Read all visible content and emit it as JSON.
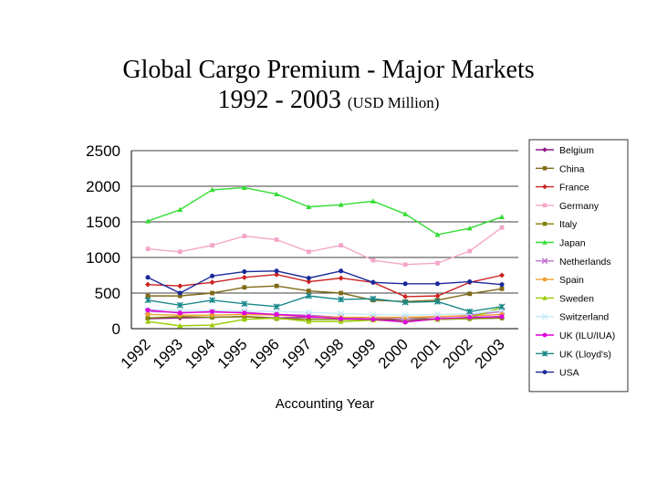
{
  "header": {
    "title_line1": "Global Cargo Premium - Major Markets",
    "title_line2": "1992 - 2003",
    "title_unit": "(USD Million)"
  },
  "chart_data": {
    "type": "line",
    "x": [
      "1992",
      "1993",
      "1994",
      "1995",
      "1996",
      "1997",
      "1998",
      "1999",
      "2000",
      "2001",
      "2002",
      "2003"
    ],
    "xlabel": "Accounting Year",
    "ylabel": "",
    "ylim": [
      0,
      2500
    ],
    "yticks": [
      0,
      500,
      1000,
      1500,
      2000,
      2500
    ],
    "grid": true,
    "legend": "right",
    "series": [
      {
        "name": "Belgium",
        "color": "#8B1A8B",
        "marker": "diamond",
        "values": [
          140,
          150,
          160,
          170,
          150,
          160,
          150,
          130,
          120,
          130,
          140,
          150
        ]
      },
      {
        "name": "China",
        "color": "#7F6A16",
        "marker": "square",
        "values": [
          460,
          460,
          500,
          580,
          600,
          530,
          500,
          400,
          380,
          400,
          490,
          560
        ]
      },
      {
        "name": "France",
        "color": "#CC2222",
        "marker": "diamond",
        "values": [
          620,
          600,
          650,
          720,
          760,
          660,
          710,
          650,
          450,
          460,
          650,
          750
        ]
      },
      {
        "name": "Germany",
        "color": "#F4A6C8",
        "marker": "square",
        "values": [
          1120,
          1080,
          1170,
          1300,
          1250,
          1080,
          1170,
          960,
          900,
          920,
          1090,
          1420
        ]
      },
      {
        "name": "Italy",
        "color": "#808000",
        "marker": "square",
        "values": [
          150,
          170,
          160,
          170,
          140,
          130,
          130,
          130,
          150,
          130,
          140,
          150
        ]
      },
      {
        "name": "Japan",
        "color": "#33DD33",
        "marker": "triangle",
        "values": [
          1510,
          1670,
          1950,
          1980,
          1890,
          1710,
          1740,
          1790,
          1610,
          1320,
          1410,
          1570
        ]
      },
      {
        "name": "Netherlands",
        "color": "#C070D0",
        "marker": "x",
        "values": [
          240,
          230,
          230,
          230,
          200,
          190,
          160,
          150,
          150,
          160,
          190,
          240
        ]
      },
      {
        "name": "Spain",
        "color": "#F0A030",
        "marker": "circle",
        "values": [
          200,
          190,
          190,
          200,
          190,
          170,
          160,
          160,
          160,
          170,
          180,
          200
        ]
      },
      {
        "name": "Sweden",
        "color": "#99CC00",
        "marker": "triangle",
        "values": [
          100,
          40,
          50,
          130,
          150,
          100,
          100,
          120,
          100,
          130,
          150,
          300
        ]
      },
      {
        "name": "Switzerland",
        "color": "#C8ECF8",
        "marker": "x",
        "values": [
          270,
          260,
          250,
          250,
          240,
          230,
          210,
          200,
          190,
          200,
          210,
          260
        ]
      },
      {
        "name": "UK (ILU/IUA)",
        "color": "#DD00DD",
        "marker": "circle",
        "values": [
          260,
          220,
          240,
          220,
          200,
          170,
          140,
          130,
          90,
          140,
          160,
          170
        ]
      },
      {
        "name": "UK (Lloyd's)",
        "color": "#1A8888",
        "marker": "star",
        "values": [
          400,
          330,
          400,
          350,
          310,
          460,
          410,
          420,
          370,
          380,
          240,
          310
        ]
      },
      {
        "name": "USA",
        "color": "#1A2A9A",
        "marker": "circle",
        "values": [
          720,
          500,
          740,
          800,
          810,
          710,
          810,
          650,
          630,
          630,
          660,
          620
        ]
      }
    ]
  }
}
